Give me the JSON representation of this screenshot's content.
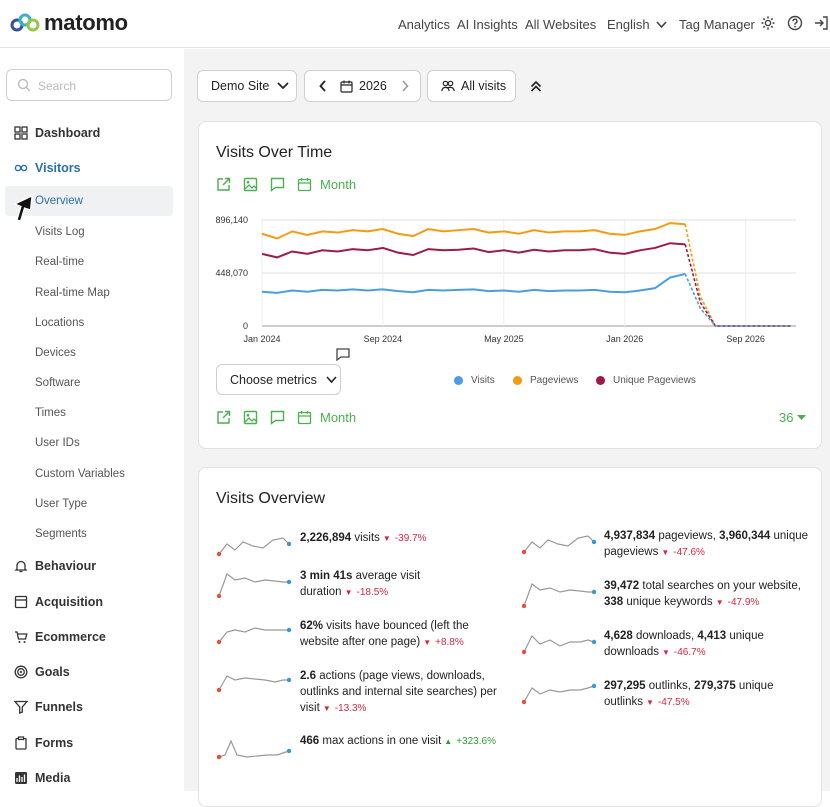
{
  "brand": {
    "name": "matomo"
  },
  "topnav": {
    "analytics": "Analytics",
    "ai_insights": "AI Insights",
    "all_websites": "All Websites",
    "language": "English",
    "tag_manager": "Tag Manager"
  },
  "sidebar": {
    "search_placeholder": "Search",
    "dashboard": "Dashboard",
    "visitors": "Visitors",
    "visitor_items": [
      "Overview",
      "Visits Log",
      "Real-time",
      "Real-time Map",
      "Locations",
      "Devices",
      "Software",
      "Times",
      "User IDs",
      "Custom Variables",
      "User Type",
      "Segments"
    ],
    "behaviour": "Behaviour",
    "acquisition": "Acquisition",
    "ecommerce": "Ecommerce",
    "goals": "Goals",
    "funnels": "Funnels",
    "forms": "Forms",
    "media": "Media"
  },
  "controls": {
    "site": "Demo Site",
    "period": "2026",
    "segment": "All visits"
  },
  "visits_over_time": {
    "title": "Visits Over Time",
    "period_label": "Month",
    "choose_metrics": "Choose metrics",
    "limit": "36",
    "chart_data": {
      "type": "line",
      "y_ticks": [
        "896,140",
        "448,070",
        "0"
      ],
      "ylim": [
        0,
        896140
      ],
      "x_ticks": [
        "Jan 2024",
        "Sep 2024",
        "May 2025",
        "Jan 2026",
        "Sep 2026"
      ],
      "series": [
        {
          "name": "Pageviews",
          "color": "#f39c12",
          "values": [
            780000,
            740000,
            800000,
            770000,
            800000,
            790000,
            810000,
            800000,
            820000,
            780000,
            760000,
            820000,
            800000,
            810000,
            820000,
            790000,
            800000,
            780000,
            810000,
            790000,
            800000,
            800000,
            810000,
            780000,
            770000,
            800000,
            820000,
            870000,
            860000,
            250000,
            0,
            0,
            0,
            0,
            0,
            0
          ]
        },
        {
          "name": "Unique Pageviews",
          "color": "#9c1b4a",
          "values": [
            610000,
            580000,
            630000,
            610000,
            640000,
            630000,
            650000,
            640000,
            660000,
            620000,
            600000,
            650000,
            640000,
            645000,
            655000,
            625000,
            640000,
            620000,
            645000,
            630000,
            640000,
            640000,
            650000,
            620000,
            610000,
            640000,
            660000,
            700000,
            690000,
            200000,
            0,
            0,
            0,
            0,
            0,
            0
          ]
        },
        {
          "name": "Visits",
          "color": "#4a9ee0",
          "values": [
            290000,
            280000,
            300000,
            290000,
            305000,
            300000,
            310000,
            300000,
            310000,
            295000,
            285000,
            305000,
            300000,
            305000,
            310000,
            295000,
            300000,
            290000,
            305000,
            295000,
            300000,
            300000,
            305000,
            290000,
            285000,
            300000,
            320000,
            410000,
            440000,
            150000,
            0,
            0,
            0,
            0,
            0,
            0
          ]
        }
      ]
    }
  },
  "visits_overview": {
    "title": "Visits Overview",
    "metrics": [
      {
        "parts": [
          [
            "b",
            "2,226,894"
          ],
          [
            "t",
            " visits"
          ]
        ],
        "change": "-39.7%",
        "dir": "neg"
      },
      {
        "parts": [
          [
            "b",
            "3 min 41s"
          ],
          [
            "t",
            " average visit duration"
          ]
        ],
        "change": "-18.5%",
        "dir": "neg"
      },
      {
        "parts": [
          [
            "b",
            "62%"
          ],
          [
            "t",
            " visits have bounced (left the website after one page)"
          ]
        ],
        "change": "+8.8%",
        "dir": "neg"
      },
      {
        "parts": [
          [
            "b",
            "2.6"
          ],
          [
            "t",
            " actions (page views, downloads, outlinks and internal site searches) per visit"
          ]
        ],
        "change": "-13.3%",
        "dir": "neg"
      },
      {
        "parts": [
          [
            "b",
            "466"
          ],
          [
            "t",
            " max actions in one visit"
          ]
        ],
        "change": "+323.6%",
        "dir": "pos"
      },
      {
        "parts": [
          [
            "b",
            "4,937,834"
          ],
          [
            "t",
            " pageviews, "
          ],
          [
            "b",
            "3,960,344"
          ],
          [
            "t",
            " unique pageviews"
          ]
        ],
        "change": "-47.6%",
        "dir": "neg"
      },
      {
        "parts": [
          [
            "b",
            "39,472"
          ],
          [
            "t",
            " total searches on your website, "
          ],
          [
            "b",
            "338"
          ],
          [
            "t",
            " unique keywords"
          ]
        ],
        "change": "-47.9%",
        "dir": "neg"
      },
      {
        "parts": [
          [
            "b",
            "4,628"
          ],
          [
            "t",
            " downloads, "
          ],
          [
            "b",
            "4,413"
          ],
          [
            "t",
            " unique downloads"
          ]
        ],
        "change": "-46.7%",
        "dir": "neg"
      },
      {
        "parts": [
          [
            "b",
            "297,295"
          ],
          [
            "t",
            " outlinks, "
          ],
          [
            "b",
            "279,375"
          ],
          [
            "t",
            " unique outlinks"
          ]
        ],
        "change": "-47.5%",
        "dir": "neg"
      }
    ]
  },
  "colors": {
    "accent_green": "#4caf50",
    "link_blue": "#2b6fa8",
    "negative": "#d5283f",
    "positive": "#2e9b33"
  }
}
